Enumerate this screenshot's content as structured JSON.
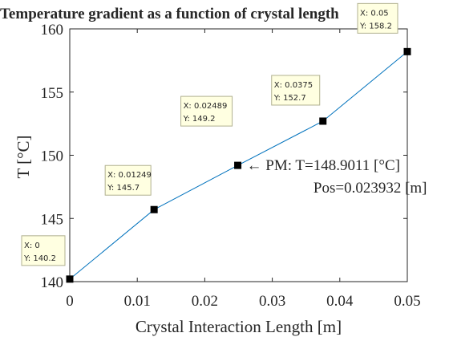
{
  "chart_data": {
    "type": "line",
    "title": "Temperature gradient as a function of crystal length",
    "xlabel": "Crystal Interaction Length [m]",
    "ylabel": "T [°C]",
    "xlim": [
      0,
      0.05
    ],
    "ylim": [
      140,
      160
    ],
    "x_ticks": [
      "0",
      "0.01",
      "0.02",
      "0.03",
      "0.04",
      "0.05"
    ],
    "y_ticks": [
      "140",
      "145",
      "150",
      "155",
      "160"
    ],
    "grid": false,
    "line_color": "#0072BD",
    "marker_color": "#000000",
    "series": [
      {
        "x": [
          0,
          0.01249,
          0.02489,
          0.0375,
          0.05
        ],
        "y": [
          140.2,
          145.7,
          149.2,
          152.7,
          158.2
        ]
      }
    ],
    "datatips": [
      {
        "x_text": "X: 0",
        "y_text": "Y: 140.2"
      },
      {
        "x_text": "X: 0.01249",
        "y_text": "Y: 145.7"
      },
      {
        "x_text": "X: 0.02489",
        "y_text": "Y: 149.2"
      },
      {
        "x_text": "X: 0.0375",
        "y_text": "Y: 152.7"
      },
      {
        "x_text": "X: 0.05",
        "y_text": "Y: 158.2"
      }
    ],
    "annotation": {
      "x": 0.025,
      "y": 149.2,
      "line1": "← PM: T=148.9011 [°C]",
      "line2": "Pos=0.023932 [m]"
    },
    "datatip_bg": "#FFFFE1",
    "datatip_border": "#B0B090"
  }
}
